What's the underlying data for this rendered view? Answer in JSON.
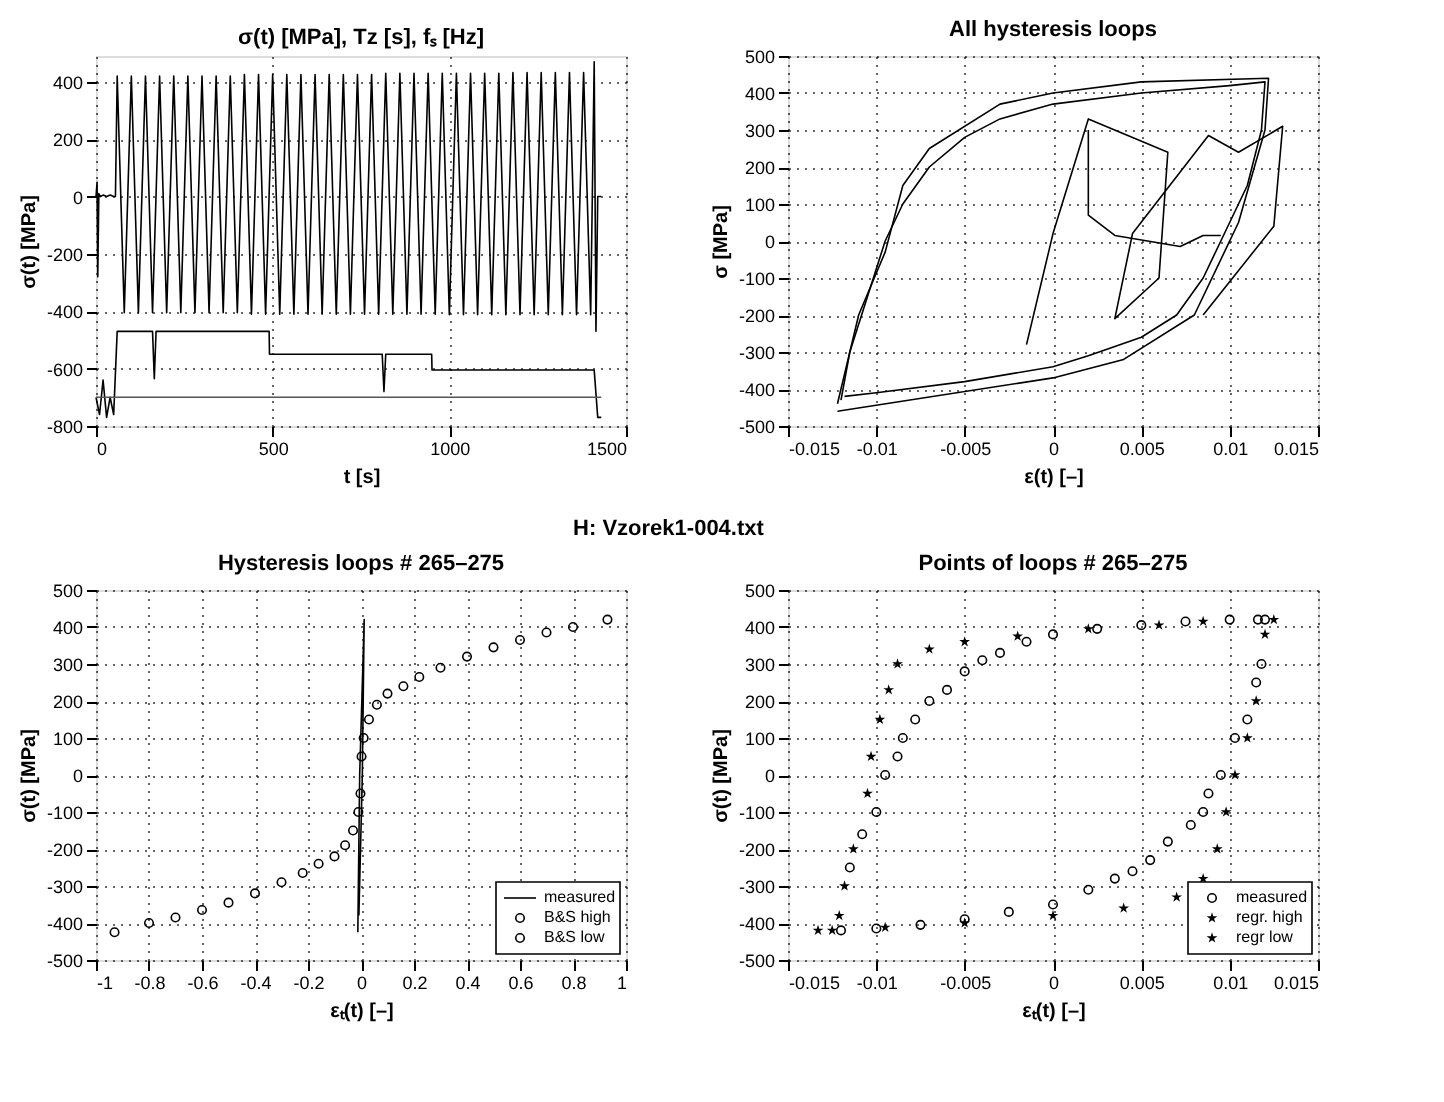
{
  "chart_data": [
    {
      "type": "line",
      "title": "σ(t) [MPa],    Tz [s],    fₛ [Hz]",
      "xlabel": "t  [s]",
      "ylabel": "σ(t)  [MPa]",
      "xlim": [
        0,
        1500
      ],
      "xticks": [
        0,
        500,
        1000,
        1500
      ],
      "ylim": [
        -800,
        490
      ],
      "yticks": [
        -800,
        -600,
        -400,
        -200,
        0,
        200,
        400
      ],
      "grid": true,
      "series": [
        {
          "color": "#000000",
          "x": [
            0,
            3,
            5,
            8,
            12,
            20,
            30,
            40,
            50,
            55,
            60,
            80,
            100,
            120,
            140,
            160,
            180,
            200,
            220,
            240,
            260,
            280,
            300,
            320,
            340,
            360,
            380,
            400,
            420,
            440,
            460,
            480,
            500,
            520,
            540,
            560,
            580,
            600,
            620,
            640,
            660,
            680,
            700,
            720,
            740,
            760,
            780,
            800,
            820,
            840,
            860,
            880,
            900,
            920,
            940,
            960,
            980,
            1000,
            1020,
            1040,
            1060,
            1080,
            1100,
            1120,
            1140,
            1160,
            1180,
            1200,
            1220,
            1240,
            1260,
            1280,
            1300,
            1320,
            1340,
            1360,
            1380,
            1400,
            1410,
            1415,
            1420,
            1430
          ],
          "values": [
            0,
            50,
            -280,
            10,
            0,
            5,
            0,
            5,
            0,
            0,
            420,
            -405,
            420,
            -405,
            420,
            -405,
            420,
            -405,
            420,
            -405,
            420,
            -405,
            420,
            -405,
            420,
            -405,
            420,
            -405,
            425,
            -410,
            425,
            -410,
            425,
            -410,
            425,
            -410,
            425,
            -410,
            425,
            -410,
            425,
            -410,
            425,
            -410,
            425,
            -410,
            425,
            -410,
            430,
            -410,
            430,
            -410,
            430,
            -410,
            430,
            -410,
            430,
            -412,
            430,
            -412,
            430,
            -412,
            430,
            -412,
            430,
            -412,
            432,
            -412,
            432,
            -412,
            432,
            -412,
            432,
            -412,
            432,
            -412,
            432,
            -412,
            470,
            -470,
            0,
            0
          ]
        },
        {
          "color": "#000000",
          "x": [
            0,
            10,
            20,
            30,
            40,
            50,
            60,
            70,
            150,
            160,
            165,
            170,
            180,
            490,
            491,
            800,
            810,
            815,
            820,
            950,
            951,
            1410,
            1420,
            1430
          ],
          "values": [
            -700,
            -760,
            -640,
            -770,
            -700,
            -760,
            -470,
            -470,
            -470,
            -470,
            -635,
            -470,
            -470,
            -470,
            -550,
            -550,
            -550,
            -680,
            -550,
            -550,
            -605,
            -605,
            -770,
            -770
          ]
        },
        {
          "color": "#555555",
          "x": [
            0,
            1430
          ],
          "values": [
            -700,
            -700
          ]
        }
      ]
    },
    {
      "type": "line",
      "title": "All hysteresis loops",
      "xlabel": "ε(t)  [–]",
      "ylabel": "σ  [MPa]",
      "xlim": [
        -0.015,
        0.015
      ],
      "xticks": [
        -0.015,
        -0.01,
        -0.005,
        0,
        0.005,
        0.01,
        0.015
      ],
      "ylim": [
        -500,
        500
      ],
      "yticks": [
        -500,
        -400,
        -300,
        -200,
        -100,
        0,
        100,
        200,
        300,
        400,
        500
      ],
      "grid": true,
      "series": [
        {
          "color": "#000000",
          "x": [
            -0.012,
            -0.0115,
            -0.0105,
            -0.0095,
            -0.0085,
            -0.007,
            -0.005,
            -0.003,
            0,
            0.005,
            0.01,
            0.012,
            0.0118,
            0.011,
            0.0095,
            0.0085,
            0.007,
            0.005,
            0.002,
            0,
            -0.005,
            -0.01,
            -0.0118
          ],
          "values": [
            -430,
            -300,
            -150,
            0,
            100,
            200,
            280,
            330,
            370,
            400,
            420,
            430,
            300,
            150,
            0,
            -100,
            -200,
            -260,
            -310,
            -340,
            -380,
            -410,
            -420
          ]
        },
        {
          "color": "#000000",
          "x": [
            -0.0122,
            -0.011,
            -0.0095,
            -0.0085,
            -0.007,
            -0.003,
            0,
            0.005,
            0.0122,
            0.012,
            0.0105,
            0.008,
            0.004,
            0,
            -0.0122
          ],
          "values": [
            -440,
            -200,
            -30,
            150,
            250,
            370,
            400,
            430,
            440,
            300,
            50,
            -200,
            -320,
            -370,
            -460
          ]
        },
        {
          "color": "#000000",
          "x": [
            -0.0015,
            0,
            0.002,
            0.0065,
            0.006,
            0.0035,
            0.0045,
            0.0088,
            0.0105,
            0.013,
            0.0125,
            0.0085
          ],
          "values": [
            -280,
            20,
            330,
            240,
            -100,
            -210,
            20,
            285,
            240,
            310,
            40,
            -200
          ]
        },
        {
          "color": "#000000",
          "x": [
            0.002,
            0.002,
            0.0035,
            0.0072,
            0.0085,
            0.0095
          ],
          "values": [
            300,
            70,
            15,
            -15,
            15,
            15
          ]
        }
      ]
    },
    {
      "type": "line",
      "title": "Hysteresis loops # 265–275",
      "xlabel": "εₜ(t)  [–]",
      "ylabel": "σ(t)  [MPa]",
      "annotations": [
        "H: Vzorek1-004.txt"
      ],
      "xlim": [
        -1,
        1
      ],
      "xticks": [
        -1,
        -0.8,
        -0.6,
        -0.4,
        -0.2,
        0,
        0.2,
        0.4,
        0.6,
        0.8,
        1
      ],
      "ylim": [
        -500,
        500
      ],
      "yticks": [
        -500,
        -400,
        -300,
        -200,
        -100,
        0,
        100,
        200,
        300,
        400,
        500
      ],
      "grid": true,
      "legend": "bottom right",
      "series": [
        {
          "name": "measured",
          "color": "#000000",
          "x": [
            -0.012,
            -0.005,
            0.012,
            0.005,
            -0.008
          ],
          "values": [
            -425,
            0,
            420,
            0,
            -380
          ]
        },
        {
          "name": "B&S high",
          "type": "scatter",
          "marker": "circle",
          "color": "#000000",
          "x": [
            0.002,
            0.01,
            0.03,
            0.06,
            0.1,
            0.16,
            0.22,
            0.3,
            0.4,
            0.5,
            0.6,
            0.7,
            0.8,
            0.93
          ],
          "values": [
            50,
            100,
            150,
            190,
            220,
            240,
            265,
            290,
            320,
            345,
            365,
            385,
            400,
            420
          ]
        },
        {
          "name": "B&S low",
          "type": "scatter",
          "marker": "circle",
          "color": "#000000",
          "x": [
            -0.93,
            -0.8,
            -0.7,
            -0.6,
            -0.5,
            -0.4,
            -0.3,
            -0.22,
            -0.16,
            -0.1,
            -0.06,
            -0.03,
            -0.01,
            -0.002
          ],
          "values": [
            -425,
            -400,
            -385,
            -365,
            -345,
            -320,
            -290,
            -265,
            -240,
            -220,
            -190,
            -150,
            -100,
            -50
          ]
        }
      ]
    },
    {
      "type": "scatter",
      "title": "Points of loops # 265–275",
      "xlabel": "εₜ(t)  [–]",
      "ylabel": "σ(t)  [MPa]",
      "xlim": [
        -0.015,
        0.015
      ],
      "xticks": [
        -0.015,
        -0.01,
        -0.005,
        0,
        0.005,
        0.01,
        0.015
      ],
      "ylim": [
        -500,
        500
      ],
      "yticks": [
        -500,
        -400,
        -300,
        -200,
        -100,
        0,
        100,
        200,
        300,
        400,
        500
      ],
      "grid": true,
      "legend": "bottom right",
      "series": [
        {
          "name": "measured",
          "marker": "circle",
          "color": "#000000",
          "x": [
            -0.012,
            -0.0115,
            -0.0108,
            -0.01,
            -0.0095,
            -0.0088,
            -0.0085,
            -0.0078,
            -0.007,
            -0.006,
            -0.005,
            -0.004,
            -0.003,
            -0.0015,
            0,
            0.0025,
            0.005,
            0.0075,
            0.01,
            0.012,
            0.0116,
            0.0118,
            0.0115,
            0.011,
            0.0103,
            0.0095,
            0.0088,
            0.0085,
            0.0078,
            0.0065,
            0.0055,
            0.0045,
            0.0035,
            0.002,
            0,
            -0.0025,
            -0.005,
            -0.0075,
            -0.01
          ],
          "values": [
            -420,
            -250,
            -160,
            -100,
            0,
            50,
            100,
            150,
            200,
            230,
            280,
            310,
            330,
            360,
            380,
            395,
            405,
            415,
            420,
            420,
            420,
            300,
            250,
            150,
            100,
            0,
            -50,
            -100,
            -135,
            -180,
            -230,
            -260,
            -280,
            -310,
            -350,
            -370,
            -390,
            -405,
            -415
          ]
        },
        {
          "name": "regr. high",
          "marker": "star",
          "color": "#000000",
          "x": [
            -0.0133,
            -0.0121,
            -0.0118,
            -0.0113,
            -0.0105,
            -0.0103,
            -0.0098,
            -0.0093,
            -0.0088,
            -0.007,
            -0.005,
            -0.002,
            0.002,
            0.006,
            0.0085,
            0.0125
          ],
          "values": [
            -420,
            -380,
            -300,
            -200,
            -50,
            50,
            150,
            230,
            300,
            340,
            360,
            375,
            395,
            405,
            415,
            420
          ]
        },
        {
          "name": "regr low",
          "marker": "star",
          "color": "#000000",
          "x": [
            0.012,
            0.0115,
            0.011,
            0.0103,
            0.0098,
            0.0093,
            0.0085,
            0.007,
            0.004,
            0,
            -0.005,
            -0.0095,
            -0.0125
          ],
          "values": [
            380,
            200,
            100,
            0,
            -100,
            -200,
            -280,
            -330,
            -360,
            -380,
            -400,
            -412,
            -420
          ]
        }
      ]
    }
  ]
}
